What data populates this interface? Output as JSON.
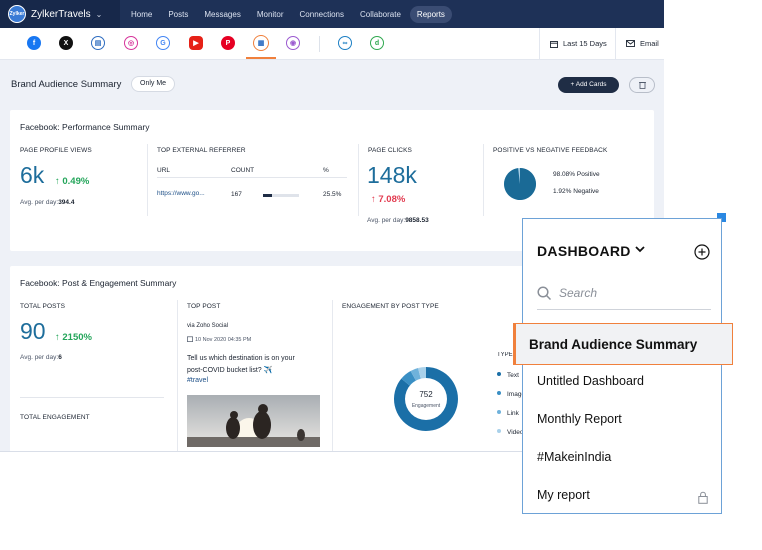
{
  "app": {
    "brand_name": "ZylkerTravels",
    "logo_text": "Zylker"
  },
  "nav": {
    "items": [
      "Home",
      "Posts",
      "Messages",
      "Monitor",
      "Connections",
      "Collaborate",
      "Reports"
    ],
    "active": "Reports"
  },
  "networks": [
    "facebook-icon",
    "x-icon",
    "google-my-business-icon",
    "instagram-icon",
    "google-icon",
    "youtube-icon",
    "pinterest-icon",
    "tiktok-icon",
    "threads-icon",
    "channel-icon",
    "zoho-icon"
  ],
  "toolbar": {
    "date_range": "Last 15 Days",
    "email": "Email"
  },
  "section": {
    "title": "Brand Audience Summary",
    "visibility": "Only Me",
    "add_cards": "+ Add Cards"
  },
  "performance": {
    "title": "Facebook: Performance Summary",
    "page_profile_views": {
      "label": "PAGE PROFILE VIEWS",
      "value": "6k",
      "change": "↑ 0.49%",
      "avg_label": "Avg. per day:",
      "avg_value": "394.4"
    },
    "top_external_referrer": {
      "label": "TOP EXTERNAL REFERRER",
      "columns": [
        "URL",
        "COUNT",
        "%"
      ],
      "rows": [
        {
          "url": "https://www.go...",
          "count": "167",
          "percent": "25.5%",
          "bar": 0.25
        }
      ]
    },
    "page_clicks": {
      "label": "PAGE CLICKS",
      "value": "148k",
      "change": "↑ 7.08%",
      "avg_label": "Avg. per day:",
      "avg_value": "9858.53"
    },
    "feedback": {
      "label": "POSITIVE VS NEGATIVE FEEDBACK",
      "positive": "98.08%",
      "positive_label": "Positive",
      "negative": "1.92%",
      "negative_label": "Negative",
      "positive_fraction": 0.9808,
      "colors": {
        "positive": "#1a6a96",
        "negative": "#a4cce4"
      }
    }
  },
  "engagement": {
    "title": "Facebook: Post & Engagement Summary",
    "total_posts": {
      "label": "TOTAL POSTS",
      "value": "90",
      "change": "↑ 2150%",
      "avg_label": "Avg. per day:",
      "avg_value": "6"
    },
    "total_engagement_label": "TOTAL ENGAGEMENT",
    "top_post": {
      "label": "TOP POST",
      "via": "via Zoho Social",
      "date": "10 Nov 2020 04:35 PM",
      "line1": "Tell us which destination is on your",
      "line2": "post-COVID bucket list? ✈️",
      "hashtag": "#travel"
    },
    "by_type": {
      "label": "ENGAGEMENT BY POST TYPE",
      "total": "752",
      "total_label": "Engagement",
      "legend_label": "TYPE",
      "legend": [
        "Text",
        "Image",
        "Link",
        "Video"
      ],
      "colors": [
        "#1b6fa7",
        "#3a8fc4",
        "#6fb2db",
        "#a9d1ea"
      ],
      "shares": [
        0.86,
        0.06,
        0.04,
        0.04
      ]
    }
  },
  "dashboard_panel": {
    "title": "DASHBOARD",
    "search_placeholder": "Search",
    "items": [
      "Brand Audience Summary",
      "Untitled Dashboard",
      "Monthly Report",
      "#MakeinIndia",
      "My report"
    ],
    "active": "Brand Audience Summary"
  }
}
